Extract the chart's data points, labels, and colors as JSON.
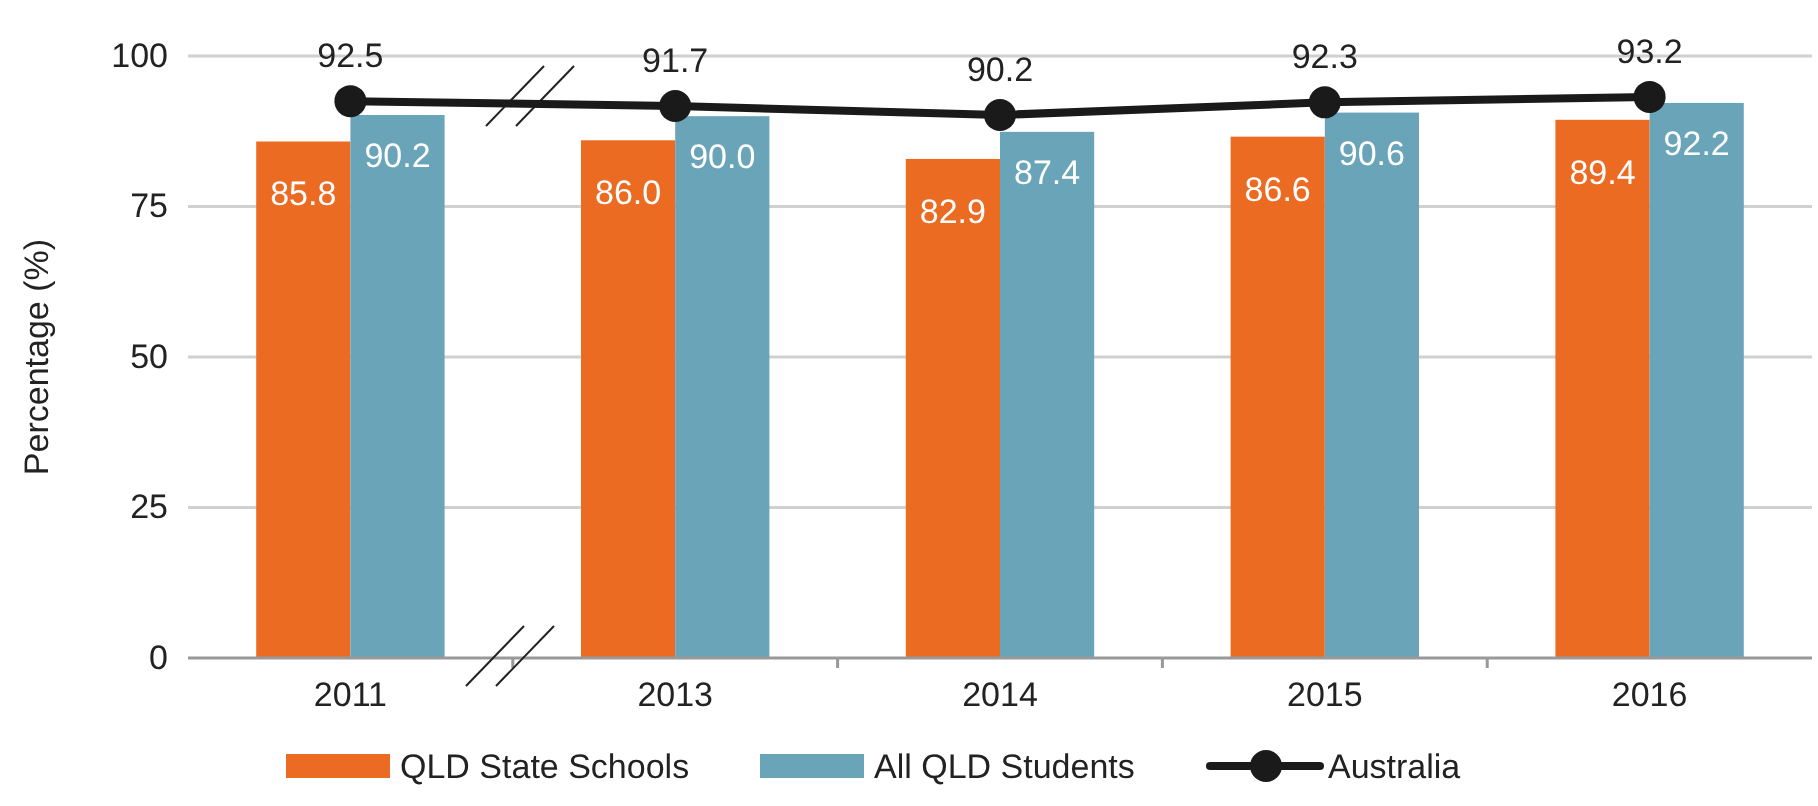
{
  "chart_data": {
    "type": "bar",
    "ylabel": "Percentage (%)",
    "categories": [
      "2011",
      "2013",
      "2014",
      "2015",
      "2016"
    ],
    "series": [
      {
        "name": "QLD State Schools",
        "color": "#eb6b23",
        "values": [
          85.8,
          86.0,
          82.9,
          86.6,
          89.4
        ],
        "value_labels": [
          "85.8",
          "86.0",
          "82.9",
          "86.6",
          "89.4"
        ]
      },
      {
        "name": "All QLD Students",
        "color": "#6aa4b8",
        "values": [
          90.2,
          90.0,
          87.4,
          90.6,
          92.2
        ],
        "value_labels": [
          "90.2",
          "90.0",
          "87.4",
          "90.6",
          "92.2"
        ]
      },
      {
        "name": "Australia",
        "type": "line",
        "color": "#1a1a1a",
        "marker": "circle",
        "values": [
          92.5,
          91.7,
          90.2,
          92.3,
          93.2
        ],
        "value_labels": [
          "92.5",
          "91.7",
          "90.2",
          "92.3",
          "93.2"
        ]
      }
    ],
    "ylim": [
      0,
      100
    ],
    "yticks": [
      0,
      25,
      50,
      75,
      100
    ],
    "grid": "y",
    "legend": "bottom"
  }
}
